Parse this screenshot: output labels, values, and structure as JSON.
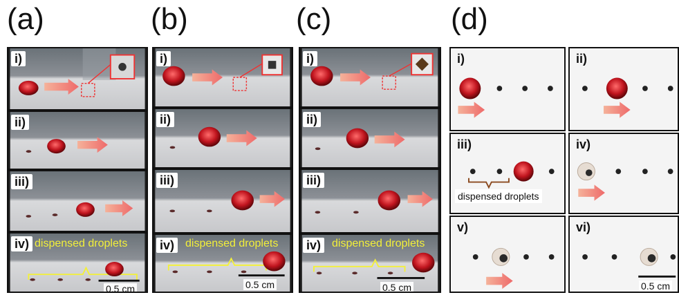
{
  "panels": {
    "a": {
      "label": "(a)"
    },
    "b": {
      "label": "(b)"
    },
    "c": {
      "label": "(c)"
    },
    "d": {
      "label": "(d)"
    }
  },
  "sub_labels": [
    "i)",
    "ii)",
    "iii)",
    "iv)",
    "v)",
    "vi)"
  ],
  "annotations": {
    "dispensed": "dispensed droplets",
    "scale": "0.5 cm",
    "scale_d": "0.5 cm"
  },
  "colors": {
    "droplet": "#c0141e",
    "arrow": "#f08a78",
    "annotation": "#f3f03a",
    "bracket_d": "#8b4a1f"
  }
}
